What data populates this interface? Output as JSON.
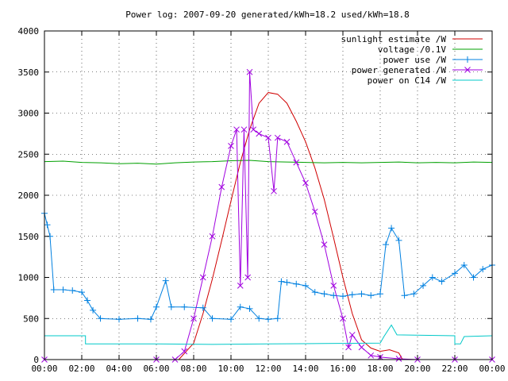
{
  "chart_data": {
    "type": "line",
    "title": "Power log: 2007-09-20 generated/kWh=18.2 used/kWh=18.8",
    "xlabel": "",
    "ylabel": "",
    "xlim": [
      "00:00",
      "24:00"
    ],
    "ylim": [
      0,
      4000
    ],
    "grid": true,
    "legend_position": "top-right",
    "x_ticks": [
      "00:00",
      "02:00",
      "04:00",
      "06:00",
      "08:00",
      "10:00",
      "12:00",
      "14:00",
      "16:00",
      "18:00",
      "20:00",
      "22:00",
      "00:00"
    ],
    "y_ticks": [
      "0",
      "500",
      "1000",
      "1500",
      "2000",
      "2500",
      "3000",
      "3500",
      "4000"
    ],
    "series": [
      {
        "name": "sunlight estimate /W",
        "color": "#d00000",
        "marker": "none",
        "points": [
          [
            7.2,
            0
          ],
          [
            8,
            200
          ],
          [
            8.5,
            560
          ],
          [
            9,
            980
          ],
          [
            9.5,
            1450
          ],
          [
            10,
            1930
          ],
          [
            10.5,
            2400
          ],
          [
            11,
            2800
          ],
          [
            11.5,
            3120
          ],
          [
            12,
            3250
          ],
          [
            12.5,
            3230
          ],
          [
            13,
            3120
          ],
          [
            13.5,
            2900
          ],
          [
            14,
            2650
          ],
          [
            14.5,
            2330
          ],
          [
            15,
            1950
          ],
          [
            15.5,
            1480
          ],
          [
            16,
            1000
          ],
          [
            16.5,
            560
          ],
          [
            17,
            240
          ],
          [
            17.5,
            140
          ],
          [
            18,
            100
          ],
          [
            18.5,
            120
          ],
          [
            19,
            80
          ],
          [
            19.2,
            0
          ]
        ]
      },
      {
        "name": "voltage /0.1V",
        "color": "#00a000",
        "marker": "none",
        "points": [
          [
            0,
            2410
          ],
          [
            1,
            2415
          ],
          [
            2,
            2400
          ],
          [
            3,
            2395
          ],
          [
            4,
            2385
          ],
          [
            5,
            2390
          ],
          [
            6,
            2380
          ],
          [
            7,
            2395
          ],
          [
            8,
            2405
          ],
          [
            9,
            2410
          ],
          [
            10,
            2420
          ],
          [
            11,
            2425
          ],
          [
            12,
            2410
          ],
          [
            13,
            2405
          ],
          [
            14,
            2400
          ],
          [
            15,
            2395
          ],
          [
            16,
            2400
          ],
          [
            17,
            2395
          ],
          [
            18,
            2400
          ],
          [
            19,
            2405
          ],
          [
            20,
            2395
          ],
          [
            21,
            2400
          ],
          [
            22,
            2395
          ],
          [
            23,
            2405
          ],
          [
            24,
            2400
          ]
        ]
      },
      {
        "name": "power use /W",
        "color": "#0080e0",
        "marker": "plus",
        "points": [
          [
            0,
            1780
          ],
          [
            0.15,
            1640
          ],
          [
            0.3,
            1500
          ],
          [
            0.5,
            850
          ],
          [
            1,
            850
          ],
          [
            1.5,
            840
          ],
          [
            2,
            820
          ],
          [
            2.3,
            720
          ],
          [
            2.6,
            600
          ],
          [
            3,
            500
          ],
          [
            4,
            490
          ],
          [
            5,
            500
          ],
          [
            5.7,
            490
          ],
          [
            6,
            640
          ],
          [
            6.5,
            960
          ],
          [
            6.8,
            640
          ],
          [
            7.5,
            640
          ],
          [
            8.5,
            630
          ],
          [
            9,
            500
          ],
          [
            10,
            490
          ],
          [
            10.5,
            640
          ],
          [
            11,
            620
          ],
          [
            11.5,
            500
          ],
          [
            12,
            490
          ],
          [
            12.5,
            500
          ],
          [
            12.7,
            950
          ],
          [
            13,
            940
          ],
          [
            13.5,
            920
          ],
          [
            14,
            900
          ],
          [
            14.5,
            820
          ],
          [
            15,
            800
          ],
          [
            15.5,
            780
          ],
          [
            16,
            770
          ],
          [
            16.5,
            790
          ],
          [
            17,
            800
          ],
          [
            17.5,
            780
          ],
          [
            18,
            800
          ],
          [
            18.3,
            1400
          ],
          [
            18.6,
            1600
          ],
          [
            19,
            1450
          ],
          [
            19.3,
            780
          ],
          [
            19.8,
            800
          ],
          [
            20.3,
            900
          ],
          [
            20.8,
            1000
          ],
          [
            21.3,
            950
          ],
          [
            22,
            1050
          ],
          [
            22.5,
            1150
          ],
          [
            23,
            1000
          ],
          [
            23.5,
            1100
          ],
          [
            24,
            1150
          ]
        ]
      },
      {
        "name": "power generated /W",
        "color": "#a000e0",
        "marker": "cross",
        "points": [
          [
            0,
            0
          ],
          [
            6,
            0
          ],
          [
            7,
            0
          ],
          [
            7.5,
            100
          ],
          [
            8,
            500
          ],
          [
            8.5,
            1000
          ],
          [
            9,
            1500
          ],
          [
            9.5,
            2100
          ],
          [
            10,
            2600
          ],
          [
            10.3,
            2800
          ],
          [
            10.5,
            900
          ],
          [
            10.7,
            2800
          ],
          [
            10.9,
            1000
          ],
          [
            11,
            3500
          ],
          [
            11.2,
            2800
          ],
          [
            11.5,
            2750
          ],
          [
            12,
            2700
          ],
          [
            12.3,
            2050
          ],
          [
            12.5,
            2700
          ],
          [
            13,
            2650
          ],
          [
            13.5,
            2400
          ],
          [
            14,
            2150
          ],
          [
            14.5,
            1800
          ],
          [
            15,
            1400
          ],
          [
            15.5,
            900
          ],
          [
            16,
            500
          ],
          [
            16.3,
            150
          ],
          [
            16.5,
            300
          ],
          [
            17,
            150
          ],
          [
            17.5,
            50
          ],
          [
            18,
            30
          ],
          [
            19,
            10
          ],
          [
            20,
            0
          ],
          [
            22,
            0
          ],
          [
            24,
            0
          ]
        ]
      },
      {
        "name": "power on C14 /W",
        "color": "#00c8c8",
        "marker": "none",
        "points": [
          [
            0,
            290
          ],
          [
            2.2,
            290
          ],
          [
            2.2,
            190
          ],
          [
            6,
            190
          ],
          [
            9,
            185
          ],
          [
            12,
            190
          ],
          [
            15,
            195
          ],
          [
            18,
            200
          ],
          [
            18.2,
            280
          ],
          [
            18.6,
            420
          ],
          [
            18.9,
            300
          ],
          [
            22,
            290
          ],
          [
            22,
            190
          ],
          [
            22.3,
            190
          ],
          [
            22.5,
            280
          ],
          [
            24,
            290
          ]
        ]
      }
    ]
  }
}
